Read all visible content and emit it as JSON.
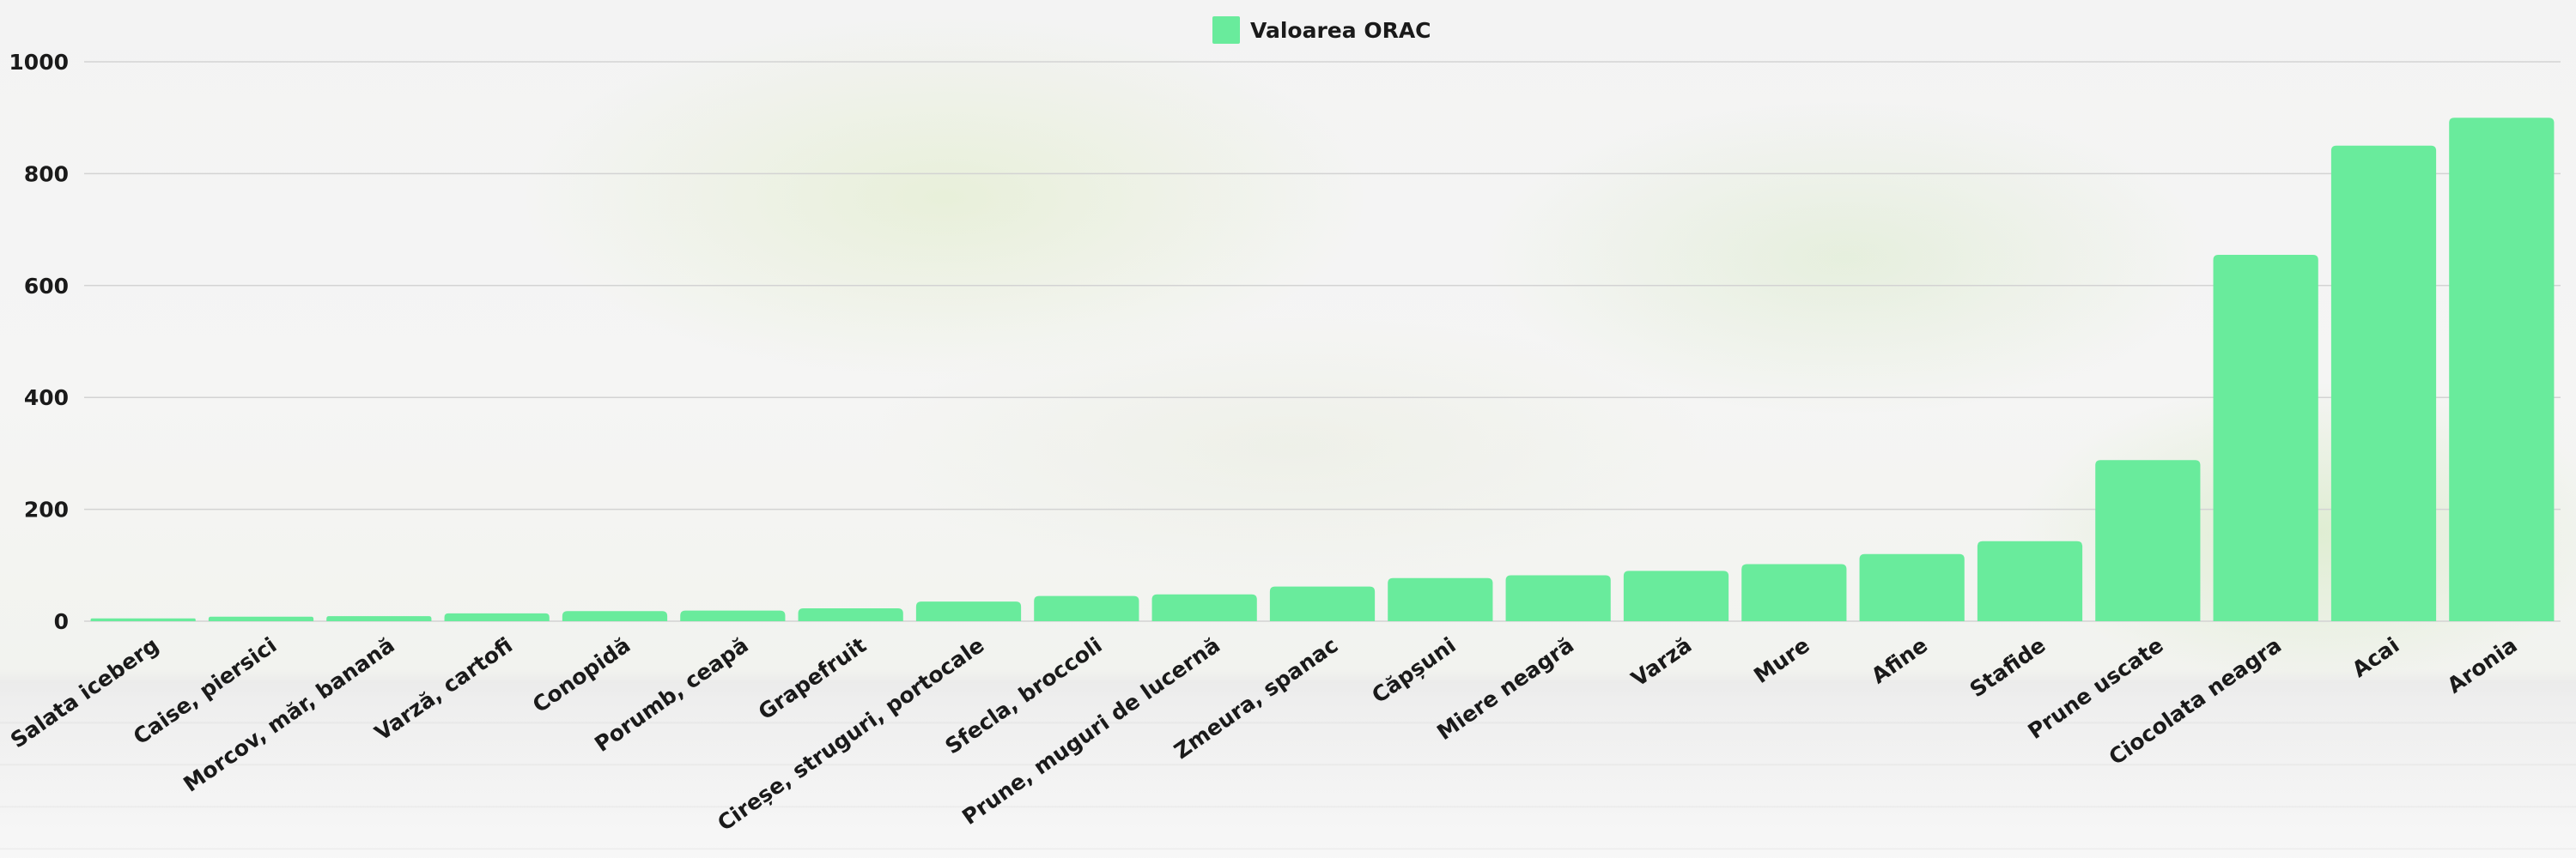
{
  "chart_data": {
    "type": "bar",
    "title": "",
    "xlabel": "",
    "ylabel": "",
    "ylim": [
      0,
      1000
    ],
    "yticks": [
      0,
      200,
      400,
      600,
      800,
      1000
    ],
    "grid": true,
    "legend_position": "top-center",
    "categories": [
      "Salata iceberg",
      "Caise, piersici",
      "Morcov, măr, banană",
      "Varză, cartofi",
      "Conopidă",
      "Porumb, ceapă",
      "Grapefruit",
      "Cireșe, struguri, portocale",
      "Sfecla, broccoli",
      "Prune, muguri de lucernă",
      "Zmeura, spanac",
      "Căpșuni",
      "Miere neagră",
      "Varză",
      "Mure",
      "Afine",
      "Stafide",
      "Prune uscate",
      "Ciocolata neagra",
      "Acai",
      "Aronia"
    ],
    "series": [
      {
        "name": "Valoarea ORAC",
        "color": "#69eb9c",
        "values": [
          5,
          8,
          9,
          14,
          18,
          19,
          23,
          35,
          45,
          48,
          62,
          77,
          82,
          90,
          102,
          120,
          143,
          288,
          655,
          850,
          900
        ]
      }
    ]
  }
}
